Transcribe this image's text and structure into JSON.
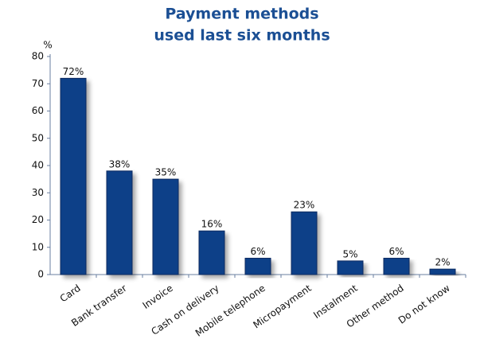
{
  "chart_data": {
    "type": "bar",
    "title": [
      "Payment methods",
      "used last six months"
    ],
    "y_label": "%",
    "categories": [
      "Card",
      "Bank transfer",
      "Invoice",
      "Cash on delivery",
      "Mobile telephone",
      "Micropayment",
      "Instalment",
      "Other method",
      "Do not know"
    ],
    "values": [
      72,
      38,
      35,
      16,
      6,
      23,
      5,
      6,
      2
    ],
    "value_labels": [
      "72%",
      "38%",
      "35%",
      "16%",
      "6%",
      "23%",
      "5%",
      "6%",
      "2%"
    ],
    "color": "#0f3f88",
    "ylim": [
      0,
      80
    ],
    "yticks": [
      0,
      10,
      20,
      30,
      40,
      50,
      60,
      70,
      80
    ]
  }
}
